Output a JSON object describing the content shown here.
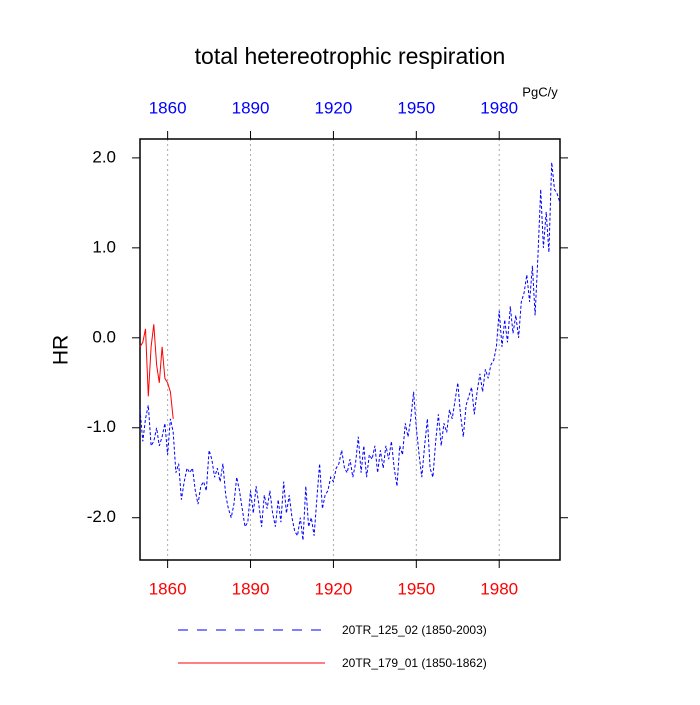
{
  "chart_data": {
    "type": "line",
    "title": "total hetereotrophic respiration",
    "y_label": "HR",
    "units": "PgC/y",
    "xlim": [
      1850,
      2002
    ],
    "xticks": [
      1860,
      1890,
      1920,
      1950,
      1980
    ],
    "ylim": [
      -2.47,
      2.21
    ],
    "yticks": [
      {
        "value": 2,
        "label": "2.0"
      },
      {
        "value": 1,
        "label": "1.0"
      },
      {
        "value": 0,
        "label": "0.0"
      },
      {
        "value": -1,
        "label": "-1.0"
      },
      {
        "value": -2,
        "label": "-2.0"
      }
    ],
    "grid": "x",
    "top_tick_color": "#0000ff",
    "bottom_tick_color": "#ff0000",
    "legend": "bottom",
    "series": [
      {
        "name": "20TR_125_02 (1850-2003)",
        "color": "#0000ff",
        "style": "dashed",
        "x": [
          1850,
          1851,
          1852,
          1853,
          1854,
          1855,
          1856,
          1857,
          1858,
          1859,
          1860,
          1861,
          1862,
          1863,
          1864,
          1865,
          1866,
          1867,
          1868,
          1869,
          1870,
          1871,
          1872,
          1873,
          1874,
          1875,
          1876,
          1877,
          1878,
          1879,
          1880,
          1881,
          1882,
          1883,
          1884,
          1885,
          1886,
          1887,
          1888,
          1889,
          1890,
          1891,
          1892,
          1893,
          1894,
          1895,
          1896,
          1897,
          1898,
          1899,
          1900,
          1901,
          1902,
          1903,
          1904,
          1905,
          1906,
          1907,
          1908,
          1909,
          1910,
          1911,
          1912,
          1913,
          1914,
          1915,
          1916,
          1917,
          1918,
          1919,
          1920,
          1921,
          1922,
          1923,
          1924,
          1925,
          1926,
          1927,
          1928,
          1929,
          1930,
          1931,
          1932,
          1933,
          1934,
          1935,
          1936,
          1937,
          1938,
          1939,
          1940,
          1941,
          1942,
          1943,
          1944,
          1945,
          1946,
          1947,
          1948,
          1949,
          1950,
          1951,
          1952,
          1953,
          1954,
          1955,
          1956,
          1957,
          1958,
          1959,
          1960,
          1961,
          1962,
          1963,
          1964,
          1965,
          1966,
          1967,
          1968,
          1969,
          1970,
          1971,
          1972,
          1973,
          1974,
          1975,
          1976,
          1977,
          1978,
          1979,
          1980,
          1981,
          1982,
          1983,
          1984,
          1985,
          1986,
          1987,
          1988,
          1989,
          1990,
          1991,
          1992,
          1993,
          1994,
          1995,
          1996,
          1997,
          1998,
          1999,
          2000,
          2001,
          2002
        ],
        "values": [
          -0.8,
          -1.15,
          -0.9,
          -0.75,
          -1.2,
          -1.15,
          -1.0,
          -1.2,
          -1.1,
          -0.95,
          -1.3,
          -0.9,
          -1.05,
          -1.5,
          -1.4,
          -1.8,
          -1.6,
          -1.45,
          -1.5,
          -1.45,
          -1.7,
          -1.85,
          -1.65,
          -1.6,
          -1.7,
          -1.25,
          -1.35,
          -1.55,
          -1.45,
          -1.6,
          -1.4,
          -1.75,
          -1.9,
          -2.0,
          -1.85,
          -1.55,
          -1.7,
          -1.9,
          -2.1,
          -2.05,
          -1.7,
          -1.95,
          -1.65,
          -1.85,
          -2.1,
          -1.75,
          -1.9,
          -1.7,
          -1.95,
          -2.1,
          -1.8,
          -2.05,
          -1.6,
          -1.95,
          -1.75,
          -2.0,
          -2.15,
          -2.2,
          -2.0,
          -2.25,
          -1.65,
          -2.1,
          -2.0,
          -2.2,
          -1.8,
          -1.4,
          -1.9,
          -1.75,
          -1.7,
          -1.55,
          -1.6,
          -1.45,
          -1.4,
          -1.25,
          -1.45,
          -1.5,
          -1.35,
          -1.55,
          -1.4,
          -1.1,
          -1.5,
          -1.2,
          -1.55,
          -1.3,
          -1.35,
          -1.2,
          -1.5,
          -1.25,
          -1.45,
          -1.2,
          -1.35,
          -1.15,
          -1.45,
          -1.65,
          -1.2,
          -1.3,
          -0.95,
          -1.1,
          -0.9,
          -0.6,
          -1.0,
          -1.3,
          -1.55,
          -1.2,
          -0.9,
          -1.45,
          -1.55,
          -1.15,
          -0.85,
          -1.2,
          -0.95,
          -1.05,
          -0.8,
          -0.9,
          -0.7,
          -0.5,
          -0.85,
          -1.1,
          -0.75,
          -0.65,
          -0.55,
          -0.85,
          -0.6,
          -0.4,
          -0.6,
          -0.35,
          -0.45,
          -0.3,
          -0.25,
          -0.1,
          0.3,
          -0.1,
          0.2,
          -0.05,
          0.35,
          0.05,
          0.25,
          0.0,
          0.4,
          0.5,
          0.7,
          0.4,
          0.8,
          0.25,
          0.9,
          1.65,
          1.0,
          1.4,
          0.95,
          1.95,
          1.65,
          1.6,
          1.5
        ]
      },
      {
        "name": "20TR_179_01 (1850-1862)",
        "color": "#ff0000",
        "style": "solid",
        "x": [
          1850,
          1851,
          1852,
          1853,
          1854,
          1855,
          1856,
          1857,
          1858,
          1859,
          1860,
          1861,
          1862
        ],
        "values": [
          -0.1,
          -0.05,
          0.1,
          -0.65,
          -0.1,
          0.15,
          -0.3,
          -0.5,
          -0.1,
          -0.45,
          -0.5,
          -0.6,
          -0.9
        ]
      }
    ]
  }
}
